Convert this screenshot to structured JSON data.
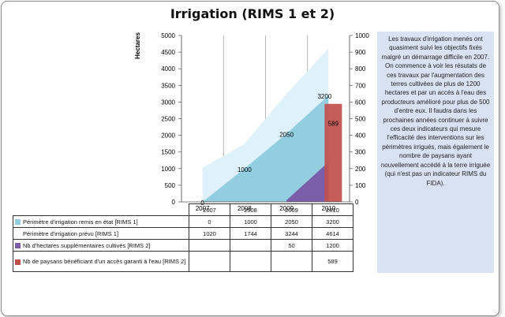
{
  "title": "Irrigation (RIMS 1 et 2)",
  "note": "Les travaux d'irrigation menés ont quasiment suivi les objectifs fixés malgré un démarrage difficile en 2007. On commence à voir les résutats de ces travaux par l'augmentation des terres cultivées de plus de 1200 hectares et par un accès à l'eau des producteurs amélioré pour plus de 500 d'entre eux. Il faudra dans les prochaines années continuer à suivre ces deux indicateurs qui mesure l'efficacité des interventions sur les périmètres irrigués, mais également le nombre de paysans ayant nouvellement accédé à la terre irriguée (qui n'est pas un indicateur RIMS du FIDA).",
  "colors": {
    "rehab": "#92cde0",
    "planned": "#dff2fb",
    "ha": "#7b5ea9",
    "farmers": "#c0504d"
  },
  "chart_data": {
    "type": "area",
    "categories": [
      "2007",
      "2008",
      "2009",
      "2010"
    ],
    "ylabel": "Hectares",
    "ylim": [
      0,
      5000
    ],
    "y2lim": [
      0,
      1000
    ],
    "yticks": [
      "0",
      "500",
      "1000",
      "1500",
      "2000",
      "2500",
      "3000",
      "3500",
      "4000",
      "4500",
      "5000"
    ],
    "y2ticks": [
      "0",
      "100",
      "200",
      "300",
      "400",
      "500",
      "600",
      "700",
      "800",
      "900",
      "1000"
    ],
    "series": [
      {
        "name": "Périmètre d'irrigation remis en état [RIMS 1]",
        "type": "area",
        "axis": "left",
        "values": [
          0,
          1000,
          2050,
          3200
        ],
        "labels": [
          "0",
          "1000",
          "2050",
          "3200"
        ],
        "display": [
          "0",
          "1000",
          "2050",
          "3200"
        ]
      },
      {
        "name": "Périmètre d'irrigation prévu [RIMS 1]",
        "type": "area",
        "axis": "left",
        "values": [
          1020,
          1744,
          3244,
          4614
        ],
        "display": [
          "1020",
          "1744",
          "3244",
          "4614"
        ]
      },
      {
        "name": "Nb d'hectares supplémentaires cultivés [RIMS 2]",
        "type": "area",
        "axis": "left",
        "values": [
          null,
          null,
          50,
          1200
        ],
        "display": [
          "",
          "",
          "50",
          "1200"
        ]
      },
      {
        "name": "Nb de paysans bénéficiant d'un accès garanti à l'eau [RIMS 2]",
        "type": "bar",
        "axis": "right",
        "values": [
          null,
          null,
          null,
          589
        ],
        "labels": [
          "",
          "",
          "",
          "589"
        ],
        "display": [
          "",
          "",
          "",
          "589"
        ]
      }
    ]
  }
}
